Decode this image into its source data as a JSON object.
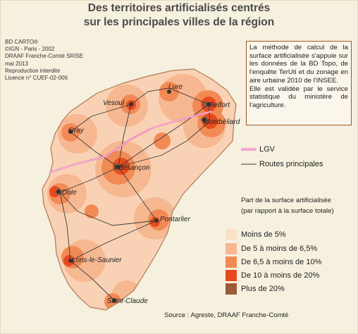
{
  "title": {
    "line1": "Des territoires artificialisés centrés",
    "line2": "sur les principales villes de la région"
  },
  "credits": [
    "BD CARTO®",
    "©IGN - Paris - 2002",
    "DRAAF Franche-Comté SRISE",
    "mai 2013",
    "Reproduction interdite",
    "Licence n° CUEF-02-006"
  ],
  "info_box": {
    "paragraph1": "La méthode de calcul de la surface artificialisée s'appuie sur les données de la BD Topo, de l'enquête TerUti et du zonage en aire urbaine 2010 de l'INSEE.",
    "paragraph2": "Elle est validée par le service statistique du ministère de l'agriculture."
  },
  "legend": {
    "lgv": "LGV",
    "routes": "Routes principales",
    "surface_title_line1": "Part de la surface artificialisée",
    "surface_title_line2": "(par rapport à la surface totale)",
    "classes": [
      {
        "label": "Moins de 5%",
        "color": "#fbe0c8"
      },
      {
        "label": "De 5 à moins de 6,5%",
        "color": "#f6b891"
      },
      {
        "label": "De 6,5 à moins de 10%",
        "color": "#f28a55"
      },
      {
        "label": "De 10 à moins de 20%",
        "color": "#e84a1e"
      },
      {
        "label": "Plus de 20%",
        "color": "#9c5a3a"
      }
    ]
  },
  "cities": [
    "Vesoul",
    "Lure",
    "Belfort",
    "Montbéliard",
    "Gray",
    "Besançon",
    "Dole",
    "Pontarlier",
    "Lons-le-Saunier",
    "Saint-Claude"
  ],
  "colors": {
    "lgv": "#e85ab0",
    "roads": "#3a3a3a",
    "region_base": "#f8c9a8",
    "highlight": "#e84a1e"
  },
  "source": "Source :  Agreste, DRAAF Franche-Comté"
}
